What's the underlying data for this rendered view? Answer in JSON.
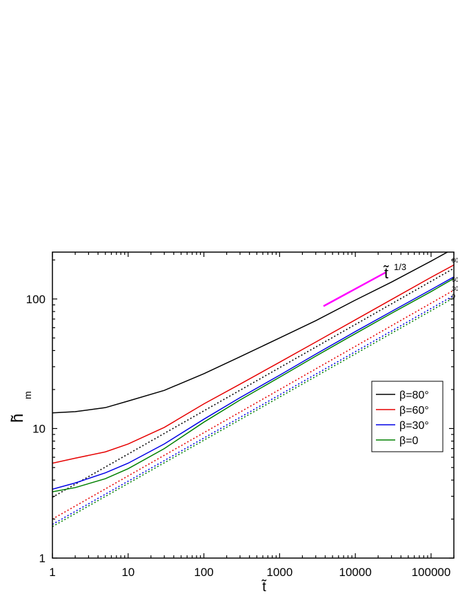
{
  "chart_data": {
    "type": "line",
    "xscale": "log",
    "yscale": "log",
    "xlim": [
      1,
      200000
    ],
    "ylim": [
      1,
      230
    ],
    "xlabel": "t̃",
    "ylabel": "h̃",
    "ylabel_sub": "m",
    "x_ticks": [
      {
        "value": 1,
        "label": "1"
      },
      {
        "value": 10,
        "label": "10"
      },
      {
        "value": 100,
        "label": "100"
      },
      {
        "value": 1000,
        "label": "1000"
      },
      {
        "value": 10000,
        "label": "10000"
      },
      {
        "value": 100000,
        "label": "100000"
      }
    ],
    "y_ticks": [
      {
        "value": 1,
        "label": "1"
      },
      {
        "value": 10,
        "label": "10"
      },
      {
        "value": 100,
        "label": "100"
      }
    ],
    "grid": false,
    "legend_position": "center-right",
    "series": [
      {
        "name": "β=80°",
        "color": "#000000",
        "end_label": "80",
        "x": [
          1,
          2,
          5,
          10,
          30,
          100,
          300,
          1000,
          3000,
          10000,
          30000,
          100000,
          200000
        ],
        "y": [
          13.2,
          13.5,
          14.5,
          16.3,
          19.7,
          26.5,
          35.8,
          50,
          68,
          98,
          135,
          196,
          245
        ]
      },
      {
        "name": "β=60°",
        "color": "#e60000",
        "end_label": "60",
        "x": [
          1,
          2,
          5,
          10,
          30,
          100,
          300,
          1000,
          3000,
          10000,
          30000,
          100000,
          200000
        ],
        "y": [
          5.4,
          5.9,
          6.6,
          7.6,
          10.2,
          15.5,
          22,
          32.5,
          46.5,
          69,
          99,
          147,
          183
        ]
      },
      {
        "name": "β=30°",
        "color": "#0000e6",
        "end_label": "30",
        "x": [
          1,
          2,
          5,
          10,
          30,
          100,
          300,
          1000,
          3000,
          10000,
          30000,
          100000,
          200000
        ],
        "y": [
          3.4,
          3.8,
          4.55,
          5.4,
          7.6,
          11.8,
          17.3,
          25.8,
          37.5,
          56,
          80,
          118,
          148
        ]
      },
      {
        "name": "β=0",
        "color": "#008000",
        "end_label": "0",
        "x": [
          1,
          2,
          5,
          10,
          30,
          100,
          300,
          1000,
          3000,
          10000,
          30000,
          100000,
          200000
        ],
        "y": [
          3.25,
          3.5,
          4.1,
          4.9,
          7.0,
          11.2,
          16.6,
          24.9,
          36.2,
          54,
          77.5,
          114,
          144
        ]
      }
    ],
    "fits": [
      {
        "color": "#000000",
        "exponent": 0.3333,
        "prefactor": 2.95
      },
      {
        "color": "#e60000",
        "exponent": 0.3333,
        "prefactor": 2.0
      },
      {
        "color": "#0000e6",
        "exponent": 0.3333,
        "prefactor": 1.82
      },
      {
        "color": "#008000",
        "exponent": 0.3333,
        "prefactor": 1.75
      }
    ],
    "annotation": {
      "text": "t̃",
      "superscript": "1/3",
      "color": "#ff00ff",
      "x": [
        3800,
        25000
      ],
      "y": [
        88,
        160
      ]
    }
  }
}
